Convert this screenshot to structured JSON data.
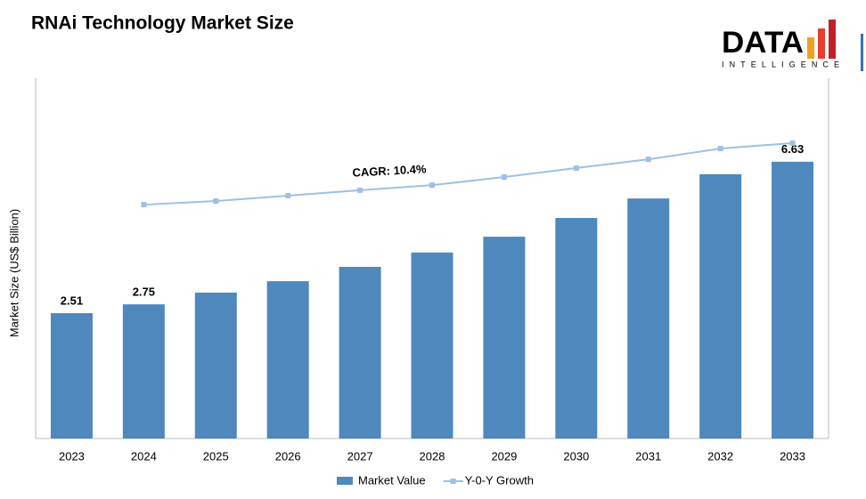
{
  "chart_data": {
    "type": "bar",
    "title": "RNAi Technology Market Size",
    "y_label": "Market Size (US$ Billion)",
    "annotation": "CAGR: 10.4%",
    "categories": [
      "2023",
      "2024",
      "2025",
      "2026",
      "2027",
      "2028",
      "2029",
      "2030",
      "2031",
      "2032",
      "2033"
    ],
    "series": [
      {
        "name": "Market Value",
        "color": "#4f88bd",
        "values": [
          2.51,
          2.75,
          3.07,
          3.38,
          3.77,
          4.16,
          4.59,
          5.1,
          5.63,
          6.29,
          6.63
        ],
        "value_labels": [
          "2.51",
          "2.75",
          null,
          null,
          null,
          null,
          null,
          null,
          null,
          null,
          "6.63"
        ]
      },
      {
        "name": "Y-0-Y Growth",
        "color": "#9dc0e3",
        "axis": "y2",
        "type": "line",
        "values": [
          null,
          7.79,
          7.91,
          8.09,
          8.27,
          8.44,
          8.71,
          9.01,
          9.3,
          9.66,
          9.84
        ]
      }
    ],
    "ylim": [
      -0.9,
      8.9
    ],
    "y2lim": [
      0,
      12
    ]
  },
  "logo": {
    "name": "DATA",
    "tagline": "INTELLIGENCE"
  }
}
